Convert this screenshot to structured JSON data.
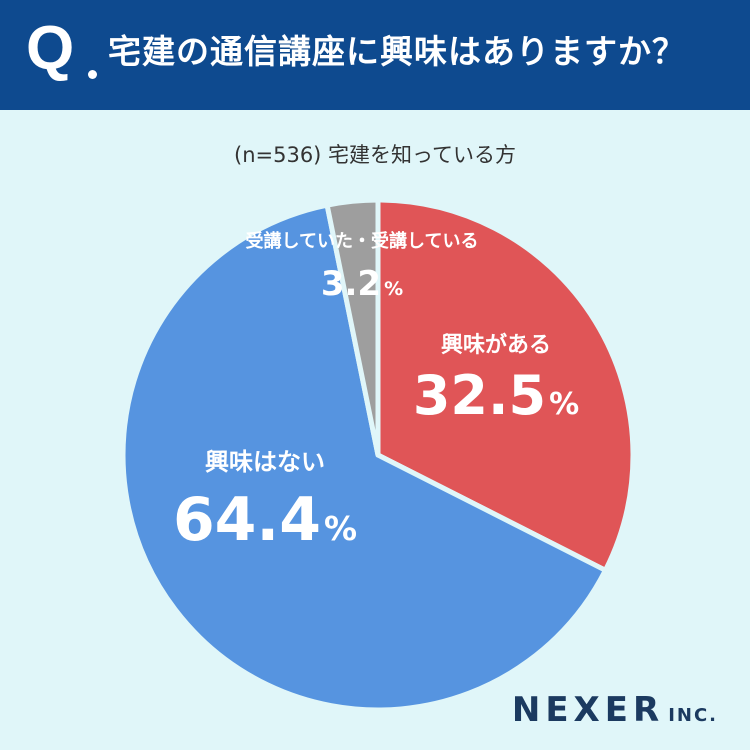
{
  "header": {
    "q_label": "Q",
    "question": "宅建の通信講座に興味はありますか？"
  },
  "subtitle": "(n=536) 宅建を知っている方",
  "chart_data": {
    "type": "pie",
    "title": "宅建の通信講座に興味はありますか？",
    "n": 536,
    "slices": [
      {
        "label": "興味がある",
        "value": 32.5,
        "display": "32.5",
        "color": "#e05557"
      },
      {
        "label": "興味はない",
        "value": 64.4,
        "display": "64.4",
        "color": "#5694e0"
      },
      {
        "label": "受講していた・受講している",
        "value": 3.2,
        "display": "3.2",
        "color": "#9e9e9e"
      }
    ],
    "unit": "%",
    "start_angle": "12 o'clock",
    "direction": "clockwise"
  },
  "logo": {
    "main": "NEXER",
    "inc": "INC."
  }
}
